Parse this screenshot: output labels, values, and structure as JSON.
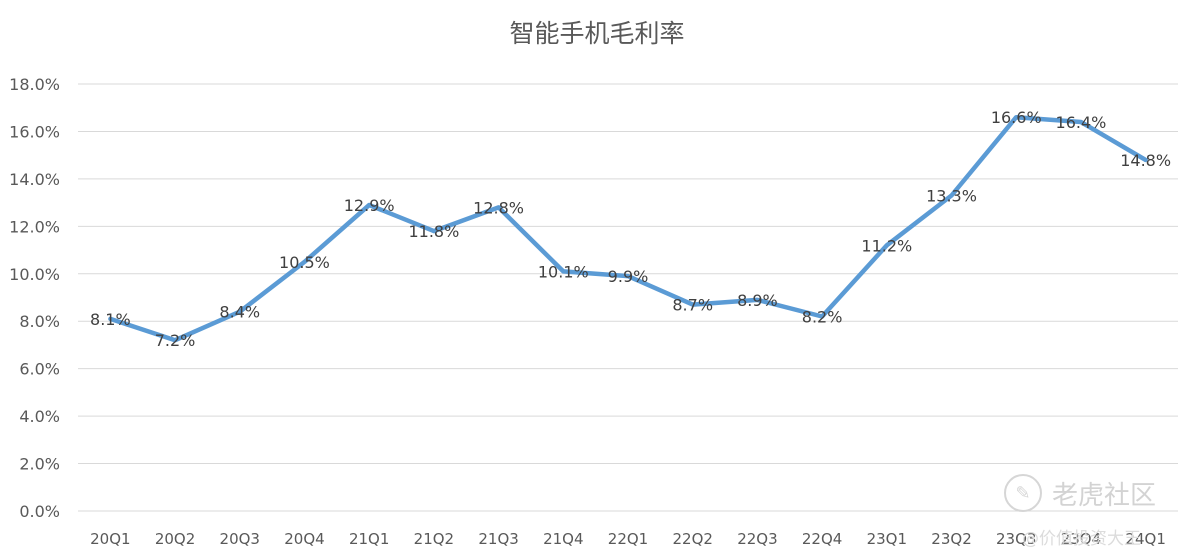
{
  "chart_data": {
    "type": "line",
    "title": "智能手机毛利率",
    "xlabel": "",
    "ylabel": "",
    "categories": [
      "20Q1",
      "20Q2",
      "20Q3",
      "20Q4",
      "21Q1",
      "21Q2",
      "21Q3",
      "21Q4",
      "22Q1",
      "22Q2",
      "22Q3",
      "22Q4",
      "23Q1",
      "23Q2",
      "23Q3",
      "23Q4",
      "24Q1"
    ],
    "series": [
      {
        "values": [
          8.1,
          7.2,
          8.4,
          10.5,
          12.9,
          11.8,
          12.8,
          10.1,
          9.9,
          8.7,
          8.9,
          8.2,
          11.2,
          13.3,
          16.6,
          16.4,
          14.8
        ],
        "labels": [
          "8.1%",
          "7.2%",
          "8.4%",
          "10.5%",
          "12.9%",
          "11.8%",
          "12.8%",
          "10.1%",
          "9.9%",
          "8.7%",
          "8.9%",
          "8.2%",
          "11.2%",
          "13.3%",
          "16.6%",
          "16.4%",
          "14.8%"
        ],
        "color": "#5b9bd5"
      }
    ],
    "ylim": [
      0,
      18
    ],
    "yticks": [
      "0.0%",
      "2.0%",
      "4.0%",
      "6.0%",
      "8.0%",
      "10.0%",
      "12.0%",
      "14.0%",
      "16.0%",
      "18.0%"
    ],
    "grid": true,
    "legend": "none"
  },
  "watermark": {
    "brand": "老虎社区",
    "sub": "@价值投资大王"
  }
}
